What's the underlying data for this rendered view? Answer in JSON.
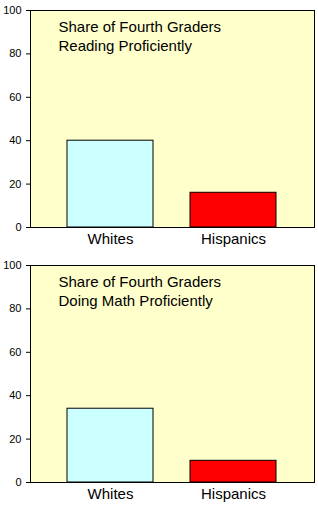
{
  "chart_data": [
    {
      "type": "bar",
      "title": "Share of Fourth Graders\nReading Proficiently",
      "categories": [
        "Whites",
        "Hispanics"
      ],
      "values": [
        40,
        16
      ],
      "colors": [
        "#ccffff",
        "#ff0000"
      ],
      "ylim": [
        0,
        100
      ],
      "yticks": [
        0,
        20,
        40,
        60,
        80,
        100
      ]
    },
    {
      "type": "bar",
      "title": "Share of Fourth Graders\nDoing Math Proficiently",
      "categories": [
        "Whites",
        "Hispanics"
      ],
      "values": [
        34,
        10
      ],
      "colors": [
        "#ccffff",
        "#ff0000"
      ],
      "ylim": [
        0,
        100
      ],
      "yticks": [
        0,
        20,
        40,
        60,
        80,
        100
      ]
    }
  ]
}
